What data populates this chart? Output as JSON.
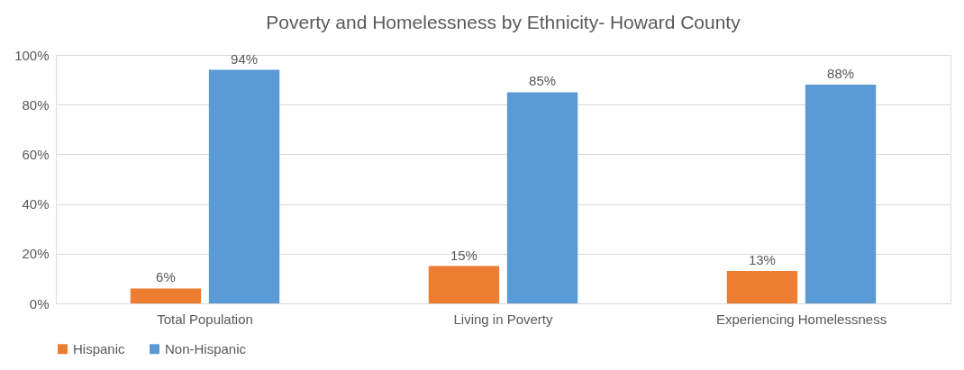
{
  "chart_data": {
    "type": "bar",
    "title": "Poverty and Homelessness by Ethnicity- Howard County",
    "categories": [
      "Total Population",
      "Living in Poverty",
      "Experiencing Homelessness"
    ],
    "series": [
      {
        "name": "Hispanic",
        "color": "#ed7d31",
        "values": [
          6,
          15,
          13
        ],
        "value_labels": [
          "6%",
          "15%",
          "13%"
        ]
      },
      {
        "name": "Non-Hispanic",
        "color": "#5b9bd5",
        "values": [
          94,
          85,
          88
        ],
        "value_labels": [
          "94%",
          "85%",
          "88%"
        ]
      }
    ],
    "ylim": [
      0,
      100
    ],
    "yticks": [
      {
        "value": 0,
        "label": "0%"
      },
      {
        "value": 20,
        "label": "20%"
      },
      {
        "value": 40,
        "label": "40%"
      },
      {
        "value": 60,
        "label": "60%"
      },
      {
        "value": 80,
        "label": "80%"
      },
      {
        "value": 100,
        "label": "100%"
      }
    ],
    "grid": "y",
    "legend": "bottom"
  }
}
